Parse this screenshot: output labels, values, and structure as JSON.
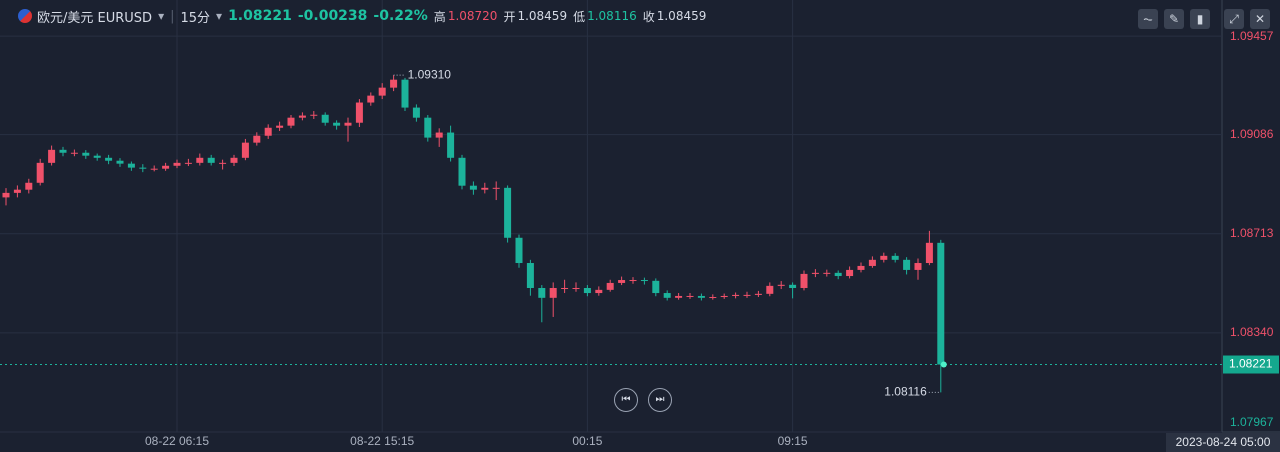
{
  "header": {
    "symbol": "欧元/美元 EURUSD",
    "interval": "15分",
    "change": "-0.00238",
    "change_pct": "-0.22%",
    "high_label": "高",
    "high": "1.08720",
    "open_label": "开",
    "open": "1.08459",
    "low_label": "低",
    "low": "1.08116",
    "close_label": "收",
    "close": "1.08459",
    "cursor_time": "2023-08-24 05:00"
  },
  "chart_data": {
    "type": "candlestick",
    "up_color": "#f0516a",
    "down_color": "#1cb39b",
    "grid": true,
    "last_price": 1.08221,
    "ylim": [
      1.07967,
      1.0948
    ],
    "yticks": [
      1.07967,
      {
        "value": 1.0834,
        "label": "1.08340"
      },
      1.08713,
      1.09086,
      1.09457
    ],
    "annotations": [
      {
        "value": 1.0931,
        "label": "1.09310"
      },
      {
        "value": 1.08116,
        "label": "1.08116"
      }
    ],
    "categories": [
      null,
      null,
      null,
      null,
      null,
      null,
      null,
      null,
      null,
      null,
      null,
      null,
      null,
      null,
      null,
      "08-22 06:15",
      null,
      null,
      null,
      null,
      null,
      null,
      null,
      null,
      null,
      null,
      null,
      null,
      null,
      null,
      null,
      null,
      null,
      "08-22 15:15",
      null,
      null,
      null,
      null,
      null,
      null,
      null,
      null,
      null,
      null,
      null,
      null,
      null,
      null,
      null,
      null,
      null,
      "00:15",
      null,
      null,
      null,
      null,
      null,
      null,
      null,
      null,
      null,
      null,
      null,
      null,
      null,
      null,
      null,
      null,
      null,
      "09:15",
      null,
      null,
      null,
      null,
      null,
      null,
      null,
      null,
      null,
      null,
      null,
      null,
      null
    ],
    "ohlc": [
      [
        1.0885,
        1.08885,
        1.0882,
        1.08867
      ],
      [
        1.08867,
        1.08895,
        1.0885,
        1.08879
      ],
      [
        1.08879,
        1.0892,
        1.08865,
        1.08905
      ],
      [
        1.08905,
        1.08995,
        1.08895,
        1.0898
      ],
      [
        1.0898,
        1.09045,
        1.0897,
        1.09029
      ],
      [
        1.09029,
        1.0904,
        1.09005,
        1.09018
      ],
      [
        1.09018,
        1.0903,
        1.09005,
        1.09018
      ],
      [
        1.09018,
        1.09028,
        1.08995,
        1.09007
      ],
      [
        1.09007,
        1.09015,
        1.08988,
        1.08999
      ],
      [
        1.08999,
        1.0901,
        1.08975,
        1.08988
      ],
      [
        1.08988,
        1.08998,
        1.08965,
        1.08977
      ],
      [
        1.08977,
        1.08985,
        1.0895,
        1.08962
      ],
      [
        1.08962,
        1.08975,
        1.08945,
        1.08958
      ],
      [
        1.08958,
        1.0897,
        1.08948,
        1.08958
      ],
      [
        1.08958,
        1.0898,
        1.0895,
        1.08969
      ],
      [
        1.08969,
        1.08992,
        1.0896,
        1.0898
      ],
      [
        1.0898,
        1.08995,
        1.08968,
        1.0898
      ],
      [
        1.0898,
        1.09015,
        1.0897,
        1.08999
      ],
      [
        1.08999,
        1.0901,
        1.0897,
        1.0898
      ],
      [
        1.0898,
        1.08992,
        1.08955,
        1.0898
      ],
      [
        1.0898,
        1.0901,
        1.08968,
        1.08999
      ],
      [
        1.08999,
        1.0907,
        1.0899,
        1.09056
      ],
      [
        1.09056,
        1.09095,
        1.09045,
        1.09082
      ],
      [
        1.09082,
        1.09125,
        1.0907,
        1.09112
      ],
      [
        1.09112,
        1.09135,
        1.091,
        1.0912
      ],
      [
        1.0912,
        1.0916,
        1.0911,
        1.0915
      ],
      [
        1.0915,
        1.0917,
        1.0914,
        1.09158
      ],
      [
        1.09158,
        1.09175,
        1.09145,
        1.09161
      ],
      [
        1.09161,
        1.0917,
        1.0912,
        1.09131
      ],
      [
        1.09131,
        1.0914,
        1.09105,
        1.0912
      ],
      [
        1.0912,
        1.0915,
        1.0906,
        1.09131
      ],
      [
        1.09131,
        1.0922,
        1.09115,
        1.09207
      ],
      [
        1.09207,
        1.09245,
        1.09195,
        1.09233
      ],
      [
        1.09233,
        1.0928,
        1.0922,
        1.09263
      ],
      [
        1.09263,
        1.0931,
        1.0925,
        1.09293
      ],
      [
        1.09293,
        1.093,
        1.09175,
        1.09188
      ],
      [
        1.09188,
        1.092,
        1.09135,
        1.0915
      ],
      [
        1.0915,
        1.0916,
        1.0906,
        1.09075
      ],
      [
        1.09075,
        1.0911,
        1.0904,
        1.09094
      ],
      [
        1.09094,
        1.0912,
        1.08985,
        1.08999
      ],
      [
        1.08999,
        1.0901,
        1.0888,
        1.08894
      ],
      [
        1.08894,
        1.0891,
        1.0886,
        1.08879
      ],
      [
        1.08879,
        1.08905,
        1.08865,
        1.08886
      ],
      [
        1.08886,
        1.0891,
        1.0884,
        1.08886
      ],
      [
        1.08886,
        1.08895,
        1.0868,
        1.08698
      ],
      [
        1.08698,
        1.0871,
        1.08585,
        1.08603
      ],
      [
        1.08603,
        1.08615,
        1.0848,
        1.08509
      ],
      [
        1.08509,
        1.0852,
        1.0838,
        1.08472
      ],
      [
        1.08472,
        1.0853,
        1.084,
        1.08509
      ],
      [
        1.08509,
        1.0854,
        1.0849,
        1.08509
      ],
      [
        1.08509,
        1.0853,
        1.08495,
        1.08509
      ],
      [
        1.08509,
        1.0852,
        1.08478,
        1.0849
      ],
      [
        1.0849,
        1.08515,
        1.0848,
        1.08502
      ],
      [
        1.08502,
        1.0854,
        1.08495,
        1.08528
      ],
      [
        1.08528,
        1.08552,
        1.0852,
        1.08539
      ],
      [
        1.08539,
        1.0855,
        1.08525,
        1.08539
      ],
      [
        1.08539,
        1.08548,
        1.08522,
        1.08536
      ],
      [
        1.08536,
        1.08545,
        1.08478,
        1.0849
      ],
      [
        1.0849,
        1.085,
        1.08462,
        1.08472
      ],
      [
        1.08472,
        1.0849,
        1.08465,
        1.08479
      ],
      [
        1.08479,
        1.0849,
        1.08468,
        1.08479
      ],
      [
        1.08479,
        1.08488,
        1.08462,
        1.08472
      ],
      [
        1.08472,
        1.08485,
        1.08465,
        1.08475
      ],
      [
        1.08475,
        1.08488,
        1.08468,
        1.08479
      ],
      [
        1.08479,
        1.08492,
        1.0847,
        1.08483
      ],
      [
        1.08483,
        1.08495,
        1.08472,
        1.08483
      ],
      [
        1.08483,
        1.08498,
        1.08475,
        1.08487
      ],
      [
        1.08487,
        1.0853,
        1.08478,
        1.08517
      ],
      [
        1.08517,
        1.08535,
        1.08505,
        1.08521
      ],
      [
        1.08521,
        1.0853,
        1.0847,
        1.08509
      ],
      [
        1.08509,
        1.08575,
        1.085,
        1.08562
      ],
      [
        1.08562,
        1.0858,
        1.0855,
        1.08566
      ],
      [
        1.08566,
        1.08578,
        1.08552,
        1.08566
      ],
      [
        1.08566,
        1.08575,
        1.08542,
        1.08554
      ],
      [
        1.08554,
        1.0859,
        1.08545,
        1.08577
      ],
      [
        1.08577,
        1.08605,
        1.08568,
        1.08592
      ],
      [
        1.08592,
        1.08628,
        1.08585,
        1.08615
      ],
      [
        1.08615,
        1.08642,
        1.08605,
        1.0863
      ],
      [
        1.0863,
        1.0864,
        1.08605,
        1.08615
      ],
      [
        1.08615,
        1.08625,
        1.0856,
        1.08577
      ],
      [
        1.08577,
        1.0862,
        1.0854,
        1.08603
      ],
      [
        1.08603,
        1.08724,
        1.08595,
        1.08679
      ],
      [
        1.08679,
        1.0869,
        1.08116,
        1.08221
      ]
    ]
  }
}
